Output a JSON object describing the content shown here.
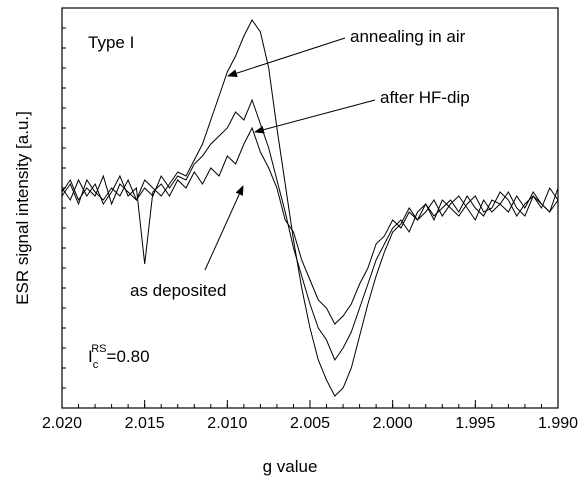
{
  "chart_data": {
    "type": "line",
    "xlabel": "g value",
    "ylabel": "ESR signal intensity   [a.u.]",
    "xlim": [
      2.02,
      1.99
    ],
    "ylim": [
      0,
      100
    ],
    "xticks": [
      {
        "value": 2.02,
        "label": "2.020"
      },
      {
        "value": 2.015,
        "label": "2.015"
      },
      {
        "value": 2.01,
        "label": "2.010"
      },
      {
        "value": 2.005,
        "label": "2.005"
      },
      {
        "value": 2.0,
        "label": "2.000"
      },
      {
        "value": 1.995,
        "label": "1.995"
      },
      {
        "value": 1.99,
        "label": "1.990"
      }
    ],
    "x": [
      2.02,
      2.0195,
      2.019,
      2.0185,
      2.018,
      2.0175,
      2.017,
      2.0165,
      2.016,
      2.0155,
      2.015,
      2.0145,
      2.014,
      2.0135,
      2.013,
      2.0125,
      2.012,
      2.0115,
      2.011,
      2.0105,
      2.01,
      2.0095,
      2.009,
      2.0085,
      2.008,
      2.0075,
      2.007,
      2.0065,
      2.006,
      2.0055,
      2.005,
      2.0045,
      2.004,
      2.0035,
      2.003,
      2.0025,
      2.002,
      2.0015,
      2.001,
      2.0005,
      2.0,
      1.9995,
      1.999,
      1.9985,
      1.998,
      1.9975,
      1.997,
      1.9965,
      1.996,
      1.9955,
      1.995,
      1.9945,
      1.994,
      1.9935,
      1.993,
      1.9925,
      1.992,
      1.9915,
      1.991,
      1.9905,
      1.99
    ],
    "series": [
      {
        "name": "as deposited",
        "color": "#000000",
        "values": [
          55,
          52,
          57,
          53,
          56,
          51,
          54,
          58,
          53,
          55,
          36,
          54,
          56,
          53,
          57,
          55,
          59,
          56,
          60,
          58,
          63,
          61,
          66,
          70,
          64,
          60,
          55,
          47,
          44,
          37,
          32,
          27,
          25,
          21,
          23,
          26,
          31,
          35,
          41,
          43,
          47,
          45,
          49,
          47,
          51,
          48,
          50,
          52,
          49,
          53,
          50,
          48,
          52,
          51,
          49,
          53,
          50,
          54,
          51,
          49,
          52
        ]
      },
      {
        "name": "after HF-dip",
        "color": "#000000",
        "values": [
          53,
          56,
          51,
          57,
          54,
          52,
          55,
          53,
          57,
          52,
          55,
          53,
          58,
          55,
          58,
          57,
          61,
          63,
          66,
          68,
          70,
          74,
          72,
          77,
          71,
          65,
          57,
          49,
          40,
          33,
          26,
          20,
          17,
          12,
          15,
          19,
          25,
          31,
          37,
          41,
          45,
          47,
          44,
          49,
          51,
          47,
          52,
          50,
          48,
          51,
          53,
          49,
          50,
          54,
          52,
          48,
          51,
          53,
          50,
          55,
          52
        ]
      },
      {
        "name": "annealing in air",
        "color": "#000000",
        "values": [
          54,
          57,
          52,
          55,
          53,
          58,
          51,
          56,
          54,
          52,
          57,
          55,
          53,
          56,
          59,
          58,
          62,
          66,
          72,
          78,
          84,
          88,
          93,
          97,
          94,
          85,
          70,
          56,
          42,
          30,
          20,
          12,
          7,
          3,
          5,
          10,
          18,
          26,
          33,
          39,
          44,
          46,
          50,
          47,
          49,
          52,
          48,
          51,
          53,
          50,
          47,
          52,
          49,
          51,
          54,
          50,
          48,
          53,
          51,
          49,
          55
        ]
      }
    ],
    "annotations": {
      "type": "Type I",
      "ic": {
        "main": "I",
        "sub": "c",
        "sup": "RS",
        "rest": "=0.80"
      }
    }
  }
}
